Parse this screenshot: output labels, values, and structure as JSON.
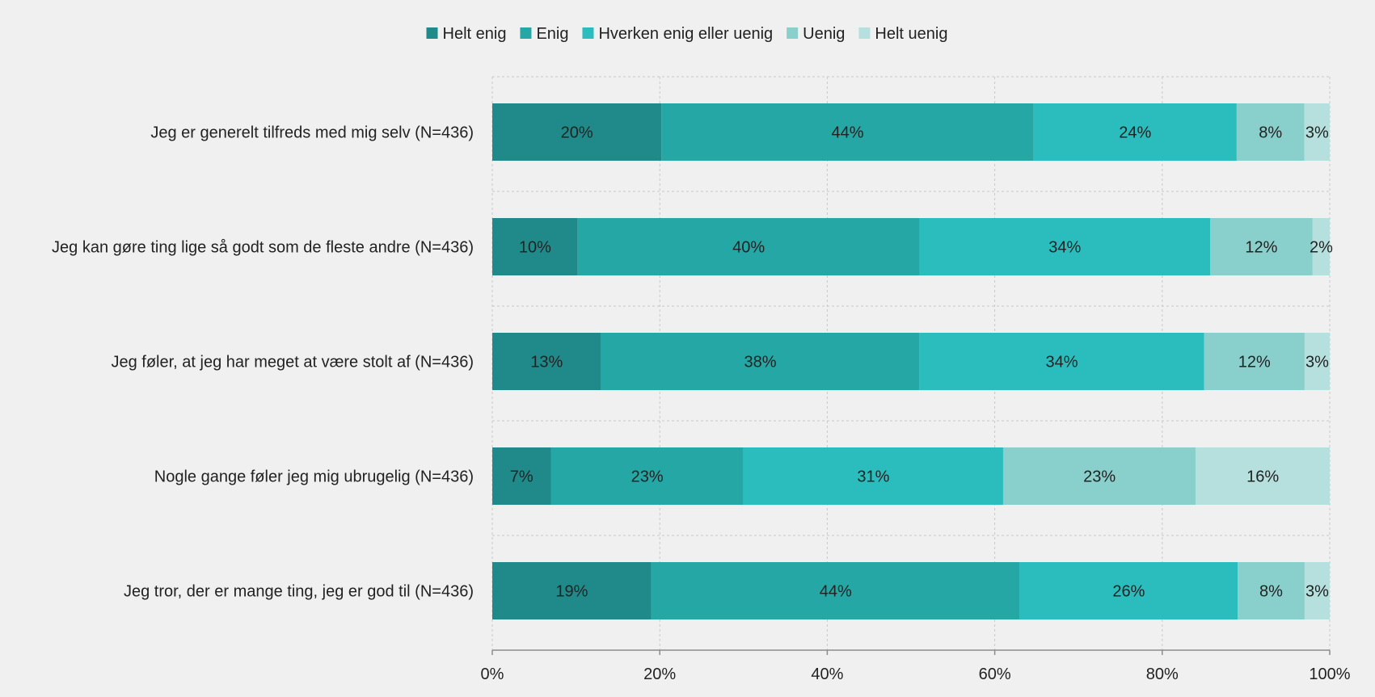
{
  "chart_data": {
    "type": "bar",
    "orientation": "horizontal",
    "stacked": true,
    "categories": [
      "Jeg er generelt tilfreds med mig selv (N=436)",
      "Jeg kan gøre ting lige så godt som de fleste andre (N=436)",
      "Jeg føler, at jeg har meget at være stolt af (N=436)",
      "Nogle gange føler jeg mig ubrugelig (N=436)",
      "Jeg tror, der er mange ting, jeg er god til (N=436)"
    ],
    "series": [
      {
        "name": "Helt enig",
        "color": "#1f8a89",
        "values": [
          20,
          10,
          13,
          7,
          19
        ]
      },
      {
        "name": "Enig",
        "color": "#25a7a5",
        "values": [
          44,
          40,
          38,
          23,
          44
        ]
      },
      {
        "name": "Hverken enig eller uenig",
        "color": "#2bbdbd",
        "values": [
          24,
          34,
          34,
          31,
          26
        ]
      },
      {
        "name": "Uenig",
        "color": "#89d0cd",
        "values": [
          8,
          12,
          12,
          23,
          8
        ]
      },
      {
        "name": "Helt uenig",
        "color": "#b6e0dd",
        "values": [
          3,
          2,
          3,
          16,
          3
        ]
      }
    ],
    "data_labels": [
      [
        "20%",
        "44%",
        "24%",
        "8%",
        "3%"
      ],
      [
        "10%",
        "40%",
        "34%",
        "12%",
        "2%"
      ],
      [
        "13%",
        "38%",
        "34%",
        "12%",
        "3%"
      ],
      [
        "7%",
        "23%",
        "31%",
        "23%",
        "16%"
      ],
      [
        "19%",
        "44%",
        "26%",
        "8%",
        "3%"
      ]
    ],
    "xlim": [
      0,
      100
    ],
    "x_ticks": [
      0,
      20,
      40,
      60,
      80,
      100
    ],
    "x_tick_labels": [
      "0%",
      "20%",
      "40%",
      "60%",
      "80%",
      "100%"
    ],
    "grid": true,
    "legend_position": "top"
  }
}
